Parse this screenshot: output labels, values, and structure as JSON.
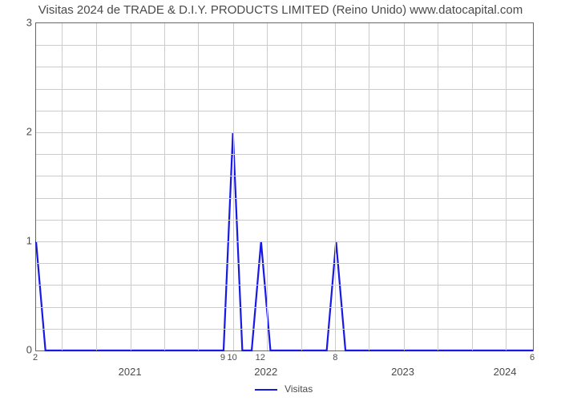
{
  "chart": {
    "type": "line",
    "title": "Visitas 2024 de TRADE & D.I.Y. PRODUCTS LIMITED (Reino Unido) www.datocapital.com",
    "title_fontsize": 15,
    "title_color": "#4a4a4a",
    "background_color": "#ffffff",
    "border_color": "#666666",
    "grid_color": "#cccccc",
    "tick_color": "#4a4a4a",
    "ylim": [
      0,
      3
    ],
    "ytick_step": 1,
    "yticks": [
      0,
      1,
      2,
      3
    ],
    "y_minor_count": 5,
    "x_index_min": 0,
    "x_index_max": 53,
    "x_minor_gridlines": [
      2.7,
      6.4,
      10.1,
      13.7,
      17.3,
      21.0,
      24.6,
      28.3,
      31.9,
      35.5,
      39.2,
      42.8,
      46.5,
      50.1
    ],
    "x_minor_ticks": [
      {
        "x": 0,
        "label": "2"
      },
      {
        "x": 20,
        "label": "9"
      },
      {
        "x": 21,
        "label": "10"
      },
      {
        "x": 24,
        "label": "12"
      },
      {
        "x": 32,
        "label": "8"
      },
      {
        "x": 53,
        "label": "6"
      }
    ],
    "x_major_ticks": [
      {
        "x": 10.1,
        "label": "2021"
      },
      {
        "x": 24.6,
        "label": "2022"
      },
      {
        "x": 39.2,
        "label": "2023"
      },
      {
        "x": 50.1,
        "label": "2024"
      }
    ],
    "series": {
      "name": "Visitas",
      "color": "#1919e6",
      "line_width": 2.2,
      "points": [
        {
          "x": 0,
          "y": 1
        },
        {
          "x": 1,
          "y": 0
        },
        {
          "x": 2,
          "y": 0
        },
        {
          "x": 3,
          "y": 0
        },
        {
          "x": 4,
          "y": 0
        },
        {
          "x": 5,
          "y": 0
        },
        {
          "x": 6,
          "y": 0
        },
        {
          "x": 7,
          "y": 0
        },
        {
          "x": 8,
          "y": 0
        },
        {
          "x": 9,
          "y": 0
        },
        {
          "x": 10,
          "y": 0
        },
        {
          "x": 11,
          "y": 0
        },
        {
          "x": 12,
          "y": 0
        },
        {
          "x": 13,
          "y": 0
        },
        {
          "x": 14,
          "y": 0
        },
        {
          "x": 15,
          "y": 0
        },
        {
          "x": 16,
          "y": 0
        },
        {
          "x": 17,
          "y": 0
        },
        {
          "x": 18,
          "y": 0
        },
        {
          "x": 19,
          "y": 0
        },
        {
          "x": 20,
          "y": 0
        },
        {
          "x": 21,
          "y": 2
        },
        {
          "x": 22,
          "y": 0
        },
        {
          "x": 23,
          "y": 0
        },
        {
          "x": 24,
          "y": 1
        },
        {
          "x": 25,
          "y": 0
        },
        {
          "x": 26,
          "y": 0
        },
        {
          "x": 27,
          "y": 0
        },
        {
          "x": 28,
          "y": 0
        },
        {
          "x": 29,
          "y": 0
        },
        {
          "x": 30,
          "y": 0
        },
        {
          "x": 31,
          "y": 0
        },
        {
          "x": 32,
          "y": 1
        },
        {
          "x": 33,
          "y": 0
        },
        {
          "x": 34,
          "y": 0
        },
        {
          "x": 35,
          "y": 0
        },
        {
          "x": 36,
          "y": 0
        },
        {
          "x": 37,
          "y": 0
        },
        {
          "x": 38,
          "y": 0
        },
        {
          "x": 39,
          "y": 0
        },
        {
          "x": 40,
          "y": 0
        },
        {
          "x": 41,
          "y": 0
        },
        {
          "x": 42,
          "y": 0
        },
        {
          "x": 43,
          "y": 0
        },
        {
          "x": 44,
          "y": 0
        },
        {
          "x": 45,
          "y": 0
        },
        {
          "x": 46,
          "y": 0
        },
        {
          "x": 47,
          "y": 0
        },
        {
          "x": 48,
          "y": 0
        },
        {
          "x": 49,
          "y": 0
        },
        {
          "x": 50,
          "y": 0
        },
        {
          "x": 51,
          "y": 0
        },
        {
          "x": 52,
          "y": 0
        },
        {
          "x": 53,
          "y": 0
        }
      ]
    },
    "legend_label": "Visitas"
  }
}
